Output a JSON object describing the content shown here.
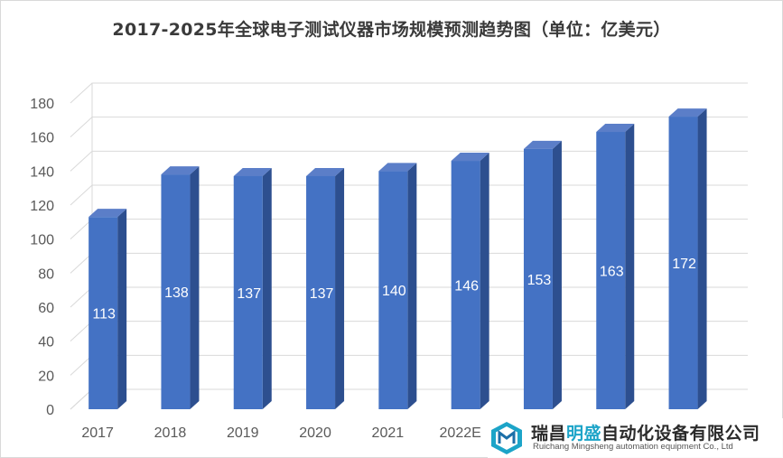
{
  "chart_data": {
    "type": "bar",
    "title": "2017-2025年全球电子测试仪器市场规模预测趋势图（单位：亿美元）",
    "categories": [
      "2017",
      "2018",
      "2019",
      "2020",
      "2021",
      "2022E",
      "",
      "",
      ""
    ],
    "values": [
      113,
      138,
      137,
      137,
      140,
      146,
      153,
      163,
      172
    ],
    "data_labels": [
      "113",
      "138",
      "137",
      "137",
      "140",
      "146",
      "153",
      "163",
      "172"
    ],
    "ylim": [
      0,
      180
    ],
    "yticks": [
      "0",
      "20",
      "40",
      "60",
      "80",
      "100",
      "120",
      "140",
      "160",
      "180"
    ],
    "xlabel": "",
    "ylabel": "",
    "grid": true,
    "style": "3d-column",
    "bar_color": "#4472c4",
    "label_color": "#ffffff"
  },
  "watermark": {
    "company_cn_prefix": "瑞昌",
    "company_cn_highlight": "明盛",
    "company_cn_suffix": "自动化设备有限公司",
    "company_en": "Ruichang Mingsheng automation equipment Co., Ltd",
    "highlight_color": "#1ca4c8"
  }
}
